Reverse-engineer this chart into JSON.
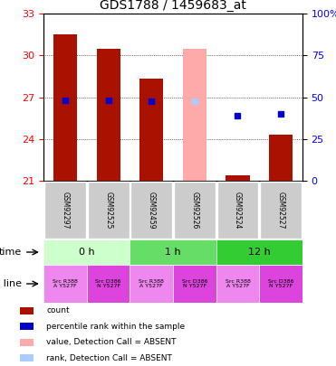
{
  "title": "GDS1788 / 1459683_at",
  "samples": [
    "GSM92297",
    "GSM92525",
    "GSM92459",
    "GSM92526",
    "GSM92524",
    "GSM92527"
  ],
  "ylim_left": [
    21,
    33
  ],
  "ylim_right": [
    0,
    100
  ],
  "yticks_left": [
    21,
    24,
    27,
    30,
    33
  ],
  "yticks_right": [
    0,
    25,
    50,
    75,
    100
  ],
  "ytick_labels_right": [
    "0",
    "25",
    "50",
    "75",
    "100%"
  ],
  "bar_bottoms": [
    21,
    21,
    21,
    21,
    21,
    21
  ],
  "bar_heights_dark_red": [
    10.5,
    9.5,
    7.3,
    0,
    0.4,
    3.3
  ],
  "bar_heights_pink": [
    0,
    0,
    0,
    9.5,
    0,
    0
  ],
  "bar_absent": [
    false,
    false,
    false,
    true,
    false,
    false
  ],
  "rank_values": [
    26.8,
    26.8,
    26.7,
    26.7,
    25.7,
    25.8
  ],
  "rank_absent": [
    false,
    false,
    false,
    true,
    false,
    false
  ],
  "rank_present_color": "#0000cc",
  "rank_absent_color": "#aaccff",
  "bar_present_color": "#aa1100",
  "bar_absent_color": "#ffaaaa",
  "time_groups": [
    {
      "label": "0 h",
      "start": 0,
      "end": 2,
      "color": "#ccffcc"
    },
    {
      "label": "1 h",
      "start": 2,
      "end": 4,
      "color": "#66dd66"
    },
    {
      "label": "12 h",
      "start": 4,
      "end": 6,
      "color": "#33cc33"
    }
  ],
  "cell_lines": [
    {
      "text": "Src R388\nA Y527F",
      "color": "#ee88ee"
    },
    {
      "text": "Src D386\nN Y527F",
      "color": "#dd44dd"
    },
    {
      "text": "Src R388\nA Y527F",
      "color": "#ee88ee"
    },
    {
      "text": "Src D386\nN Y527F",
      "color": "#dd44dd"
    },
    {
      "text": "Src R388\nA Y527F",
      "color": "#ee88ee"
    },
    {
      "text": "Src D386\nN Y527F",
      "color": "#dd44dd"
    }
  ],
  "legend_items": [
    {
      "color": "#aa1100",
      "label": "count"
    },
    {
      "color": "#0000cc",
      "label": "percentile rank within the sample"
    },
    {
      "color": "#ffaaaa",
      "label": "value, Detection Call = ABSENT"
    },
    {
      "color": "#aaccff",
      "label": "rank, Detection Call = ABSENT"
    }
  ]
}
